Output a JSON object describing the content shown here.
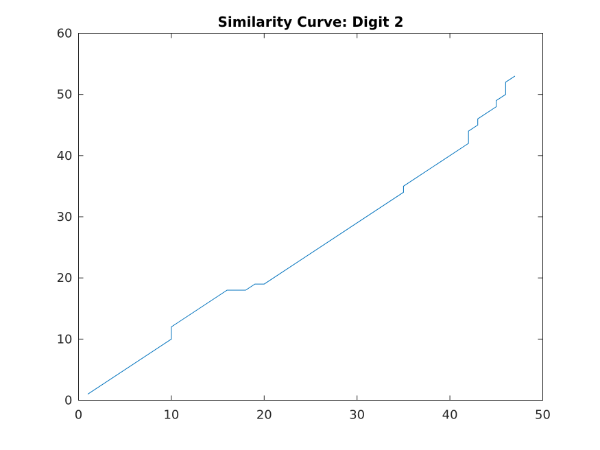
{
  "chart_data": {
    "type": "line",
    "title": "Similarity Curve: Digit 2",
    "xlabel": "",
    "ylabel": "",
    "xlim": [
      0,
      50
    ],
    "ylim": [
      0,
      60
    ],
    "xticks": [
      0,
      10,
      20,
      30,
      40,
      50
    ],
    "yticks": [
      0,
      10,
      20,
      30,
      40,
      50,
      60
    ],
    "grid": false,
    "line_color": "#0072bd",
    "series": [
      {
        "x": [
          1,
          10,
          10,
          16,
          18,
          19,
          20,
          35,
          35,
          42,
          42,
          43,
          43,
          45,
          45,
          46,
          46,
          47
        ],
        "y": [
          1,
          10,
          12,
          18,
          18,
          19,
          19,
          34,
          35,
          42,
          44,
          45,
          46,
          48,
          49,
          50,
          52,
          53
        ]
      }
    ]
  }
}
